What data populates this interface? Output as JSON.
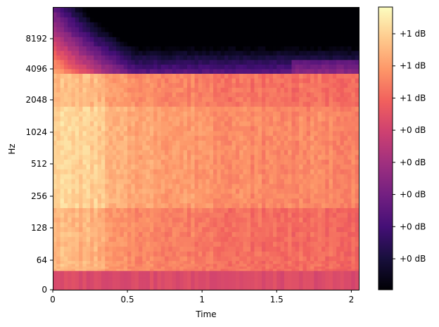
{
  "chart_data": {
    "type": "heatmap",
    "title": "",
    "xlabel": "Time",
    "ylabel": "Hz",
    "xlim": [
      0,
      2.05
    ],
    "x_ticks": [
      {
        "value": 0,
        "label": "0"
      },
      {
        "value": 0.5,
        "label": "0.5"
      },
      {
        "value": 1,
        "label": "1"
      },
      {
        "value": 1.5,
        "label": "1.5"
      },
      {
        "value": 2,
        "label": "2"
      }
    ],
    "y_scale": "symlog (base 2)",
    "ylim": [
      0,
      16000
    ],
    "y_ticks": [
      {
        "value": 0,
        "label": "0"
      },
      {
        "value": 64,
        "label": "64"
      },
      {
        "value": 128,
        "label": "128"
      },
      {
        "value": 256,
        "label": "256"
      },
      {
        "value": 512,
        "label": "512"
      },
      {
        "value": 1024,
        "label": "1024"
      },
      {
        "value": 2048,
        "label": "2048"
      },
      {
        "value": 4096,
        "label": "4096"
      },
      {
        "value": 8192,
        "label": "8192"
      }
    ],
    "colormap": [
      "#000004",
      "#180f3d",
      "#440f76",
      "#721f81",
      "#9e2f7f",
      "#cd4071",
      "#f1605d",
      "#fd9668",
      "#feca8d",
      "#fcfdbf"
    ],
    "colorbar": {
      "position": "right",
      "tick_labels": [
        "+0 dB",
        "+0 dB",
        "+0 dB",
        "+0 dB",
        "+0 dB",
        "+1 dB",
        "+1 dB",
        "+1 dB"
      ]
    },
    "description_values": {
      "time_frames": 82,
      "freq_bands": 64
    }
  }
}
